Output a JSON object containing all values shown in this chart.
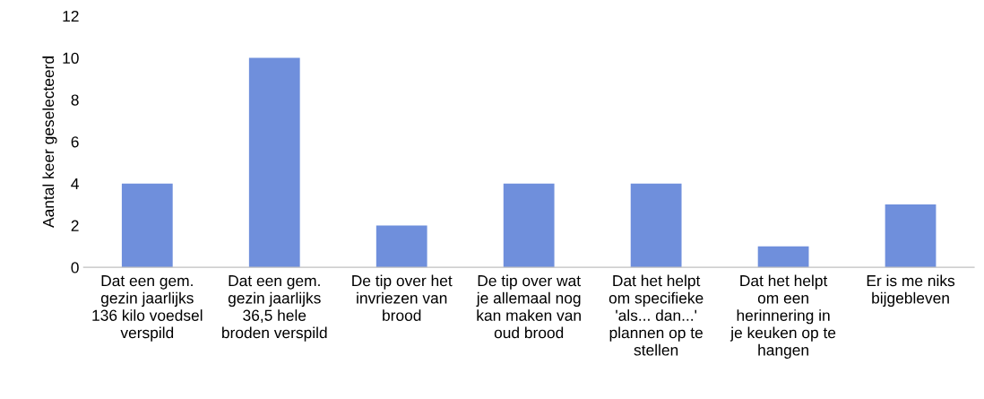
{
  "chart_data": {
    "type": "bar",
    "ylabel": "Aantal keer geselecteerd",
    "categories": [
      "Dat een gem.\ngezin jaarlijks\n136 kilo voedsel\nverspild",
      "Dat een gem.\ngezin jaarlijks\n36,5 hele\nbroden verspild",
      "De tip over het\ninvriezen van\nbrood",
      "De tip over wat\nje allemaal nog\nkan maken van\noud brood",
      "Dat het helpt\nom specifieke\n'als... dan...'\nplannen op te\nstellen",
      "Dat het helpt\nom een\nherinnering in\nje keuken op te\nhangen",
      "Er is me niks\nbijgebleven"
    ],
    "values": [
      4,
      10,
      2,
      4,
      4,
      1,
      3
    ],
    "color": "#6f8fdc",
    "ylim": [
      0,
      12
    ],
    "yticks": [
      0,
      2,
      4,
      6,
      8,
      10,
      12
    ],
    "grid": false
  }
}
